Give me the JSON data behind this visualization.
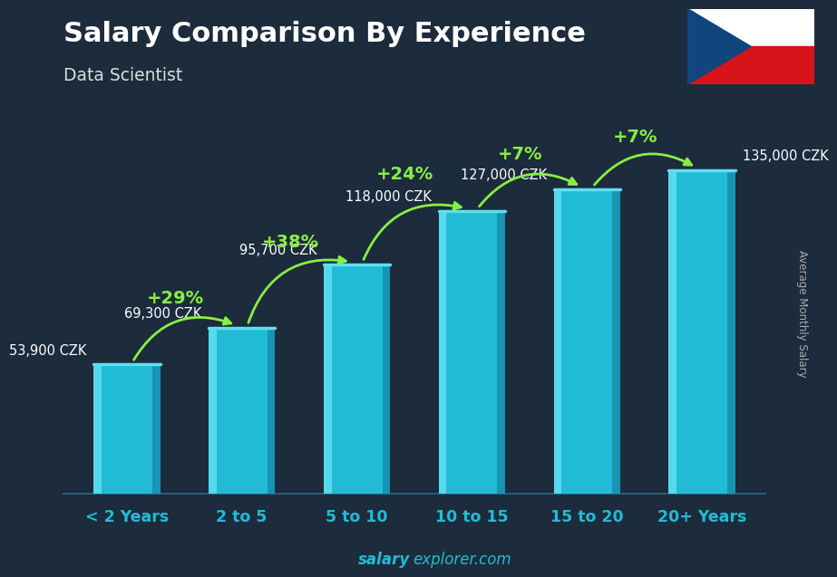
{
  "title": "Salary Comparison By Experience",
  "subtitle": "Data Scientist",
  "categories": [
    "< 2 Years",
    "2 to 5",
    "5 to 10",
    "10 to 15",
    "15 to 20",
    "20+ Years"
  ],
  "values": [
    53900,
    69300,
    95700,
    118000,
    127000,
    135000
  ],
  "value_labels": [
    "53,900 CZK",
    "69,300 CZK",
    "95,700 CZK",
    "118,000 CZK",
    "127,000 CZK",
    "135,000 CZK"
  ],
  "pct_labels": [
    "+29%",
    "+38%",
    "+24%",
    "+7%",
    "+7%"
  ],
  "bar_color": "#22bbd6",
  "bar_highlight": "#5de0f0",
  "bar_shadow": "#1590b0",
  "bg_color": "#1c2c3c",
  "title_color": "#ffffff",
  "subtitle_color": "#dddddd",
  "value_color": "#ffffff",
  "pct_color": "#88ee44",
  "arrow_color": "#88ee44",
  "xtick_color": "#22bbd6",
  "ylabel_text": "Average Monthly Salary",
  "footer_bold": "salary",
  "footer_rest": "explorer.com",
  "ylim": [
    0,
    155000
  ]
}
